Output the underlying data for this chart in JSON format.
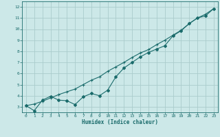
{
  "xlabel": "Humidex (Indice chaleur)",
  "bg_color": "#cce8e8",
  "grid_color": "#aacccc",
  "line_color": "#1a6b6b",
  "xlim": [
    -0.5,
    23.5
  ],
  "ylim": [
    2.5,
    12.5
  ],
  "xticks": [
    0,
    1,
    2,
    3,
    4,
    5,
    6,
    7,
    8,
    9,
    10,
    11,
    12,
    13,
    14,
    15,
    16,
    17,
    18,
    19,
    20,
    21,
    22,
    23
  ],
  "yticks": [
    3,
    4,
    5,
    6,
    7,
    8,
    9,
    10,
    11,
    12
  ],
  "line1_x": [
    0,
    1,
    2,
    3,
    4,
    5,
    6,
    7,
    8,
    9,
    10,
    11,
    12,
    13,
    14,
    15,
    16,
    17,
    18,
    19,
    20,
    21,
    22,
    23
  ],
  "line1_y": [
    3.1,
    2.65,
    3.6,
    3.95,
    3.6,
    3.55,
    3.2,
    3.9,
    4.2,
    4.0,
    4.5,
    5.7,
    6.5,
    7.0,
    7.5,
    7.9,
    8.2,
    8.5,
    9.4,
    9.85,
    10.5,
    11.0,
    11.2,
    11.85
  ],
  "line2_x": [
    0,
    1,
    2,
    3,
    4,
    5,
    6,
    7,
    8,
    9,
    10,
    11,
    12,
    13,
    14,
    15,
    16,
    17,
    18,
    19,
    20,
    21,
    22,
    23
  ],
  "line2_y": [
    3.1,
    3.25,
    3.5,
    3.8,
    4.1,
    4.35,
    4.6,
    5.0,
    5.4,
    5.7,
    6.2,
    6.6,
    7.0,
    7.45,
    7.85,
    8.15,
    8.6,
    9.0,
    9.45,
    9.9,
    10.5,
    11.0,
    11.35,
    11.85
  ]
}
